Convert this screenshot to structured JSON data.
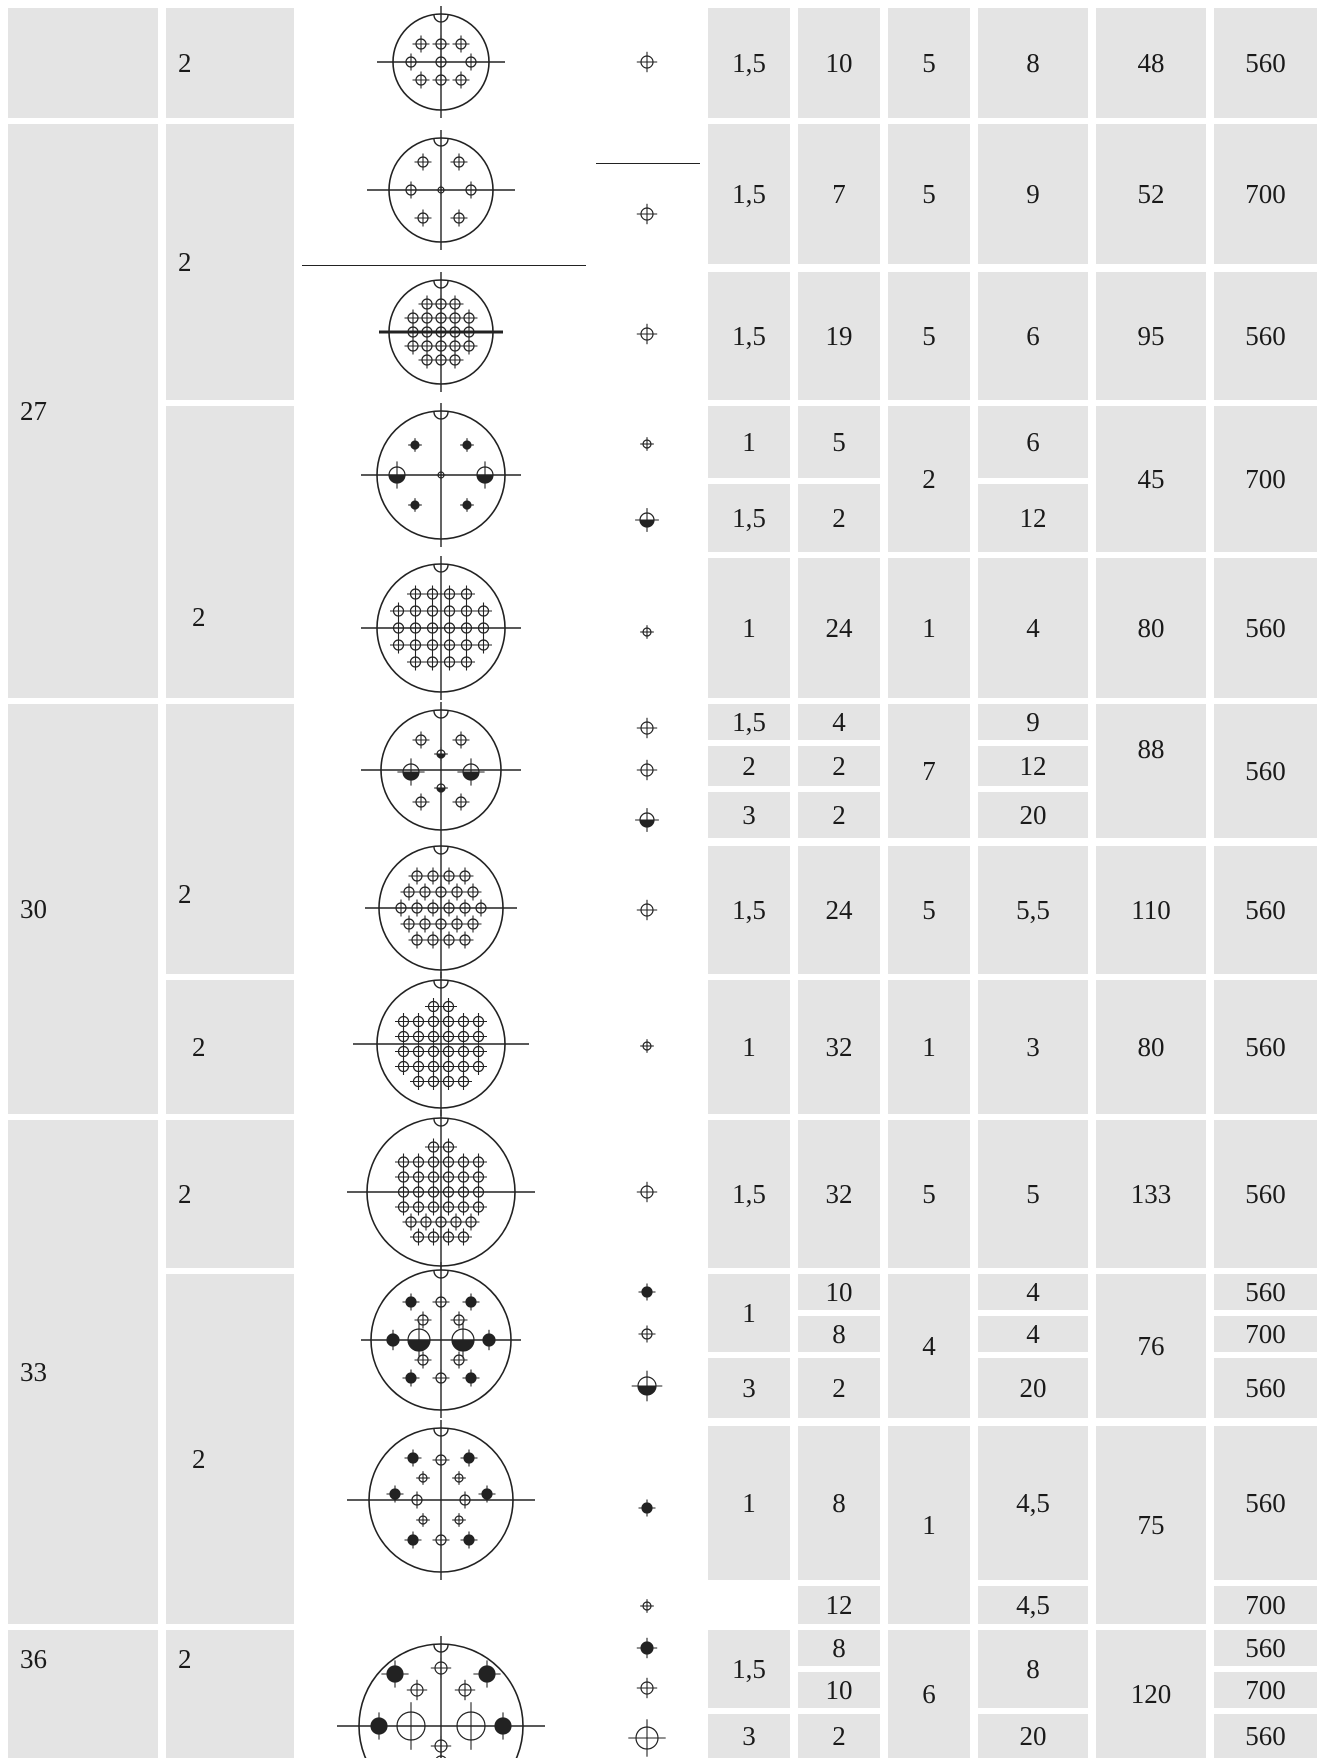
{
  "groups": [
    {
      "id": "g0",
      "size": ""
    },
    {
      "id": "g27",
      "size": "27"
    },
    {
      "id": "g30",
      "size": "30"
    },
    {
      "id": "g33",
      "size": "33"
    },
    {
      "id": "g36",
      "size": "36"
    }
  ],
  "rows": [
    {
      "group": "g0",
      "subgroup": "2",
      "diameter": "1,5",
      "contacts": "10",
      "current": "5",
      "resistance": "8",
      "load": "48",
      "voltage": "560"
    },
    {
      "group": "g27",
      "subgroup": "2",
      "diameter": "1,5",
      "contacts": "7",
      "current": "5",
      "resistance": "9",
      "load": "52",
      "voltage": "700"
    },
    {
      "group": "g27",
      "subgroup": "2",
      "diameter": "1,5",
      "contacts": "19",
      "current": "5",
      "resistance": "6",
      "load": "95",
      "voltage": "560"
    },
    {
      "group": "g27",
      "subgroup": "2",
      "lines": [
        {
          "diameter": "1",
          "contacts": "5",
          "resistance": "6"
        },
        {
          "diameter": "1,5",
          "contacts": "2",
          "resistance": "12"
        }
      ],
      "current": "2",
      "load": "45",
      "voltage": "700"
    },
    {
      "group": "g27",
      "subgroup": "2",
      "diameter": "1",
      "contacts": "24",
      "current": "1",
      "resistance": "4",
      "load": "80",
      "voltage": "560"
    },
    {
      "group": "g30",
      "subgroup": "2",
      "lines": [
        {
          "diameter": "1,5",
          "contacts": "4",
          "resistance": "9"
        },
        {
          "diameter": "2",
          "contacts": "2",
          "resistance": "12"
        },
        {
          "diameter": "3",
          "contacts": "2",
          "resistance": "20"
        }
      ],
      "current": "7",
      "load": "88",
      "voltage": "560"
    },
    {
      "group": "g30",
      "subgroup": "2",
      "diameter": "1,5",
      "contacts": "24",
      "current": "5",
      "resistance": "5,5",
      "load": "110",
      "voltage": "560"
    },
    {
      "group": "g30",
      "subgroup": "2",
      "diameter": "1",
      "contacts": "32",
      "current": "1",
      "resistance": "3",
      "load": "80",
      "voltage": "560"
    },
    {
      "group": "g33",
      "subgroup": "2",
      "diameter": "1,5",
      "contacts": "32",
      "current": "5",
      "resistance": "5",
      "load": "133",
      "voltage": "560"
    },
    {
      "group": "g33",
      "subgroup": "2",
      "lines": [
        {
          "diameter": "1",
          "contacts": "10",
          "resistance": "4",
          "voltage": "560"
        },
        {
          "contacts": "8",
          "resistance": "4",
          "voltage": "700"
        },
        {
          "diameter": "3",
          "contacts": "2",
          "resistance": "20",
          "voltage": "560"
        }
      ],
      "current": "4",
      "load": "76"
    },
    {
      "group": "g33",
      "subgroup": "2",
      "lines": [
        {
          "diameter": "1",
          "contacts": "8",
          "resistance": "4,5",
          "voltage": "560"
        },
        {
          "contacts": "12",
          "resistance": "4,5",
          "voltage": "700"
        }
      ],
      "current": "1",
      "load": "75"
    },
    {
      "group": "g36",
      "subgroup": "2",
      "lines": [
        {
          "diameter": "1,5",
          "contacts": "8",
          "resistance": "8",
          "voltage": "560"
        },
        {
          "contacts": "10",
          "voltage": "700"
        },
        {
          "diameter": "3",
          "contacts": "2",
          "resistance": "20",
          "voltage": "560"
        }
      ],
      "current": "6",
      "load": "120"
    }
  ]
}
